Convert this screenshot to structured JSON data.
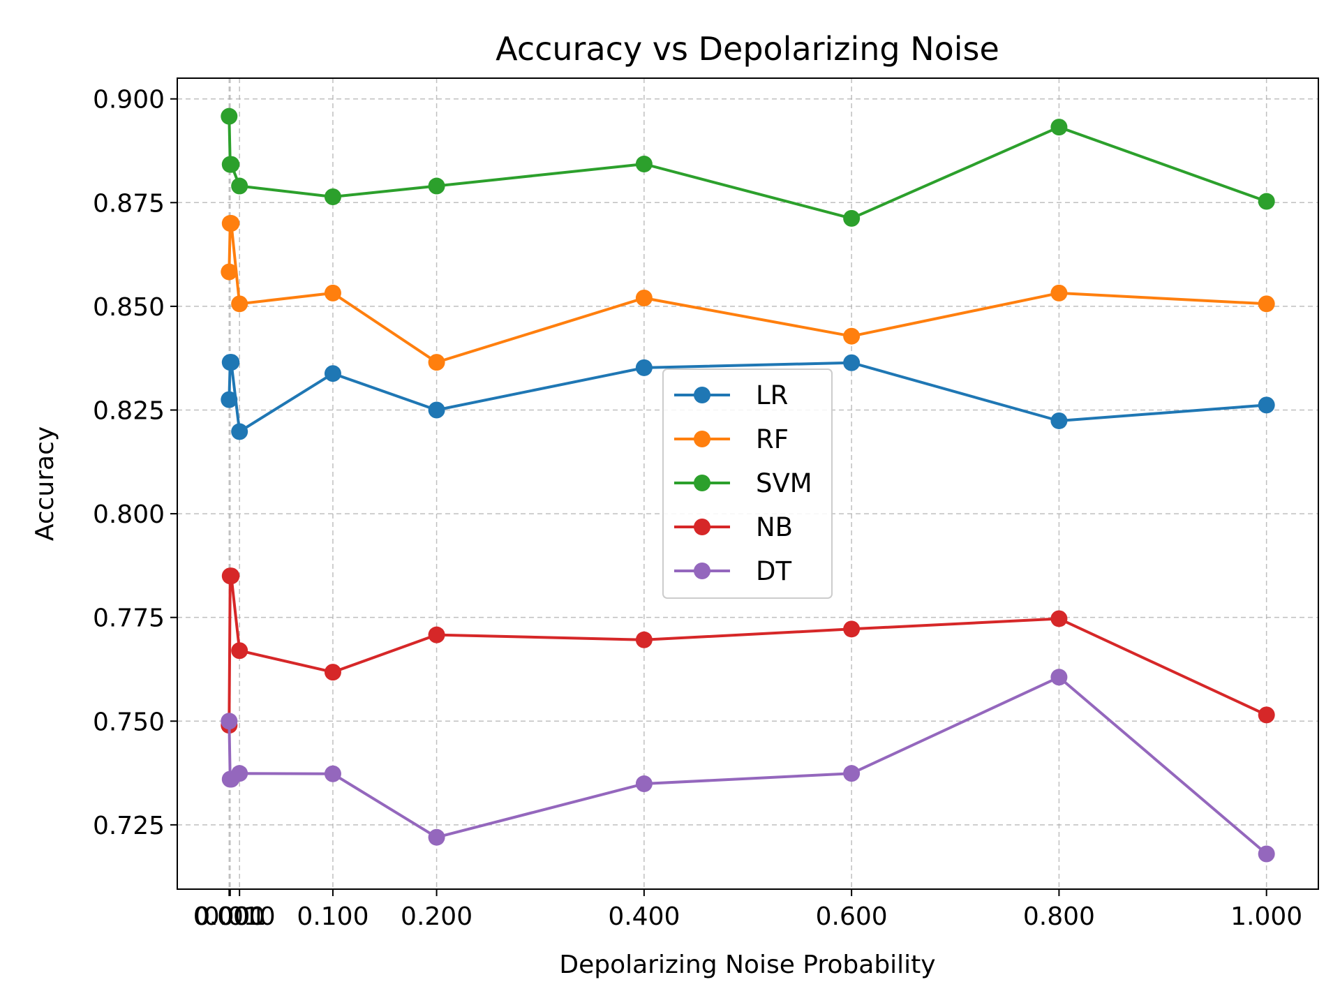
{
  "chart_data": {
    "type": "line",
    "title": "Accuracy vs Depolarizing Noise",
    "xlabel": "Depolarizing Noise Probability",
    "ylabel": "Accuracy",
    "xlim": [
      -0.05,
      1.05
    ],
    "ylim": [
      0.7095,
      0.905
    ],
    "grid": true,
    "legend_position": "center",
    "x": [
      0.0,
      0.001,
      0.002,
      0.01,
      0.1,
      0.2,
      0.4,
      0.6,
      0.8,
      1.0
    ],
    "x_ticks": [
      {
        "value": 0.0,
        "label": "0.000"
      },
      {
        "value": 0.001,
        "label": "0.001"
      },
      {
        "value": 0.01,
        "label": "0.010"
      },
      {
        "value": 0.1,
        "label": "0.100"
      },
      {
        "value": 0.2,
        "label": "0.200"
      },
      {
        "value": 0.4,
        "label": "0.400"
      },
      {
        "value": 0.6,
        "label": "0.600"
      },
      {
        "value": 0.8,
        "label": "0.800"
      },
      {
        "value": 1.0,
        "label": "1.000"
      }
    ],
    "y_ticks": [
      {
        "value": 0.725,
        "label": "0.725"
      },
      {
        "value": 0.75,
        "label": "0.750"
      },
      {
        "value": 0.775,
        "label": "0.775"
      },
      {
        "value": 0.8,
        "label": "0.800"
      },
      {
        "value": 0.825,
        "label": "0.825"
      },
      {
        "value": 0.85,
        "label": "0.850"
      },
      {
        "value": 0.875,
        "label": "0.875"
      },
      {
        "value": 0.9,
        "label": "0.900"
      }
    ],
    "series": [
      {
        "name": "LR",
        "color": "#1f77b4",
        "values": [
          0.8275,
          0.8365,
          0.8365,
          0.8198,
          0.8338,
          0.825,
          0.8352,
          0.8364,
          0.8224,
          0.8262
        ]
      },
      {
        "name": "RF",
        "color": "#ff7f0e",
        "values": [
          0.8583,
          0.87,
          0.87,
          0.8506,
          0.8532,
          0.8365,
          0.852,
          0.8428,
          0.8532,
          0.8506
        ]
      },
      {
        "name": "SVM",
        "color": "#2ca02c",
        "values": [
          0.8958,
          0.8842,
          0.8842,
          0.879,
          0.8764,
          0.879,
          0.8843,
          0.8712,
          0.8932,
          0.8753
        ]
      },
      {
        "name": "NB",
        "color": "#d62728",
        "values": [
          0.749,
          0.785,
          0.785,
          0.767,
          0.7618,
          0.7708,
          0.7696,
          0.7722,
          0.7747,
          0.7515
        ]
      },
      {
        "name": "DT",
        "color": "#9467bd",
        "values": [
          0.75,
          0.736,
          0.736,
          0.7374,
          0.7373,
          0.722,
          0.7349,
          0.7374,
          0.7606,
          0.718
        ]
      }
    ]
  }
}
